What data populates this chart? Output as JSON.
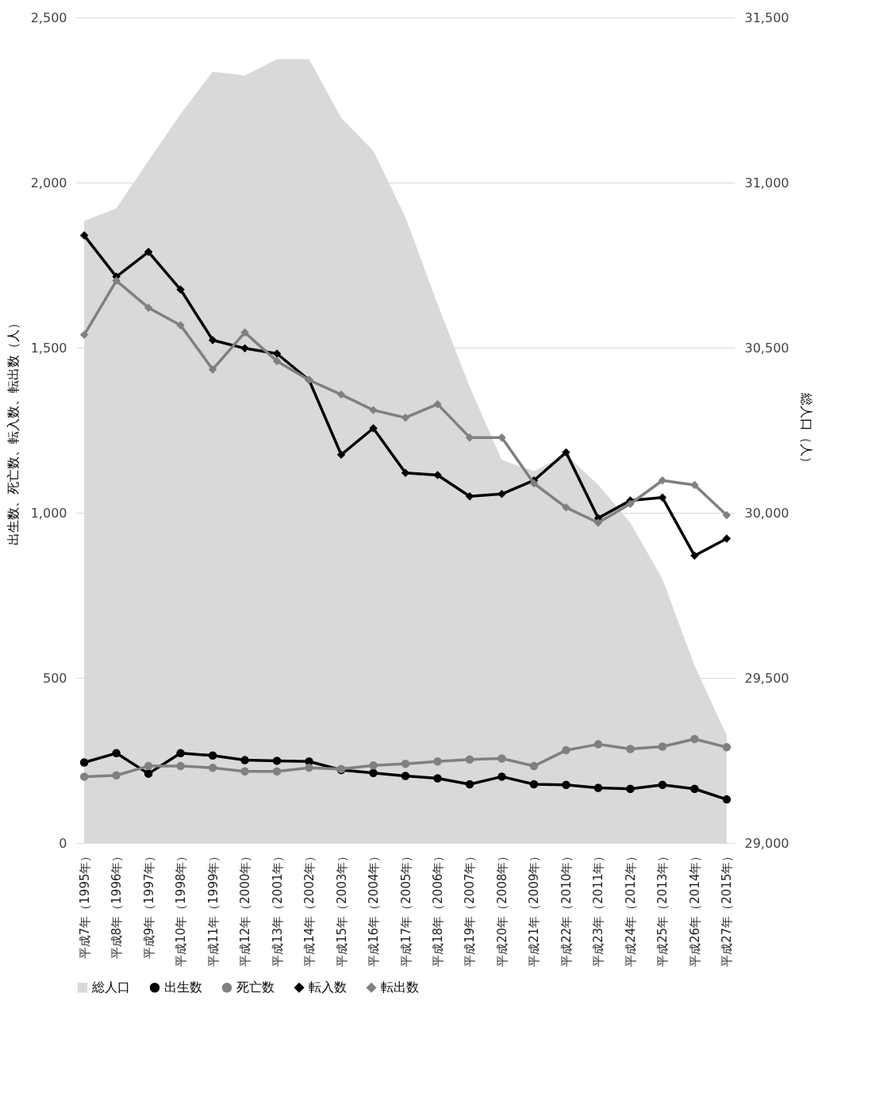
{
  "chart_data": {
    "type": "line",
    "ylabel": "出生数、死亡数、転入数、転出数（人）",
    "y2label": "総人口（人）",
    "categories": [
      "平成7年（1995年）",
      "平成8年（1996年）",
      "平成9年（1997年）",
      "平成10年（1998年）",
      "平成11年（1999年）",
      "平成12年（2000年）",
      "平成13年（2001年）",
      "平成14年（2002年）",
      "平成15年（2003年）",
      "平成16年（2004年）",
      "平成17年（2005年）",
      "平成18年（2006年）",
      "平成19年（2007年）",
      "平成20年（2008年）",
      "平成21年（2009年）",
      "平成22年（2010年）",
      "平成23年（2011年）",
      "平成24年（2012年）",
      "平成25年（2013年）",
      "平成26年（2014年）",
      "平成27年（2015年）"
    ],
    "series": [
      {
        "name": "総人口",
        "type": "area",
        "axis": "y2",
        "color": "#d9d9d9",
        "values": [
          30884,
          30922,
          31066,
          31208,
          31336,
          31324,
          31374,
          31374,
          31196,
          31096,
          30895,
          30632,
          30381,
          30160,
          30126,
          30176,
          30085,
          29970,
          29799,
          29537,
          29326
        ]
      },
      {
        "name": "出生数",
        "marker": "circle",
        "color": "#000000",
        "values": [
          244,
          272,
          210,
          272,
          265,
          251,
          249,
          247,
          221,
          212,
          203,
          196,
          178,
          201,
          178,
          176,
          167,
          164,
          176,
          164,
          132
        ]
      },
      {
        "name": "死亡数",
        "marker": "circle",
        "color": "#808080",
        "values": [
          201,
          205,
          233,
          233,
          228,
          217,
          217,
          228,
          224,
          235,
          240,
          247,
          253,
          256,
          233,
          281,
          299,
          285,
          292,
          315,
          290
        ]
      },
      {
        "name": "転入数",
        "marker": "diamond",
        "color": "#000000",
        "values": [
          1840,
          1715,
          1790,
          1676,
          1523,
          1498,
          1482,
          1402,
          1176,
          1256,
          1121,
          1114,
          1050,
          1057,
          1098,
          1183,
          984,
          1037,
          1046,
          870,
          922
        ]
      },
      {
        "name": "転出数",
        "marker": "diamond",
        "color": "#808080",
        "values": [
          1539,
          1703,
          1621,
          1568,
          1434,
          1546,
          1459,
          1402,
          1358,
          1311,
          1288,
          1329,
          1228,
          1228,
          1089,
          1016,
          970,
          1027,
          1098,
          1084,
          993
        ]
      }
    ],
    "ylim": [
      0,
      2500
    ],
    "yticks": [
      0,
      500,
      {
        "value": 1000,
        "label": "1,000"
      },
      {
        "value": 1500,
        "label": "1,500"
      },
      {
        "value": 2000,
        "label": "2,000"
      },
      {
        "value": 2500,
        "label": "2,500"
      }
    ],
    "y2lim": [
      29000,
      31500
    ],
    "y2ticks": [
      {
        "value": 29000,
        "label": "29,000"
      },
      {
        "value": 29500,
        "label": "29,500"
      },
      {
        "value": 30000,
        "label": "30,000"
      },
      {
        "value": 30500,
        "label": "30,500"
      },
      {
        "value": 31000,
        "label": "31,000"
      },
      {
        "value": 31500,
        "label": "31,500"
      }
    ],
    "grid": "y",
    "legend": "bottom"
  }
}
